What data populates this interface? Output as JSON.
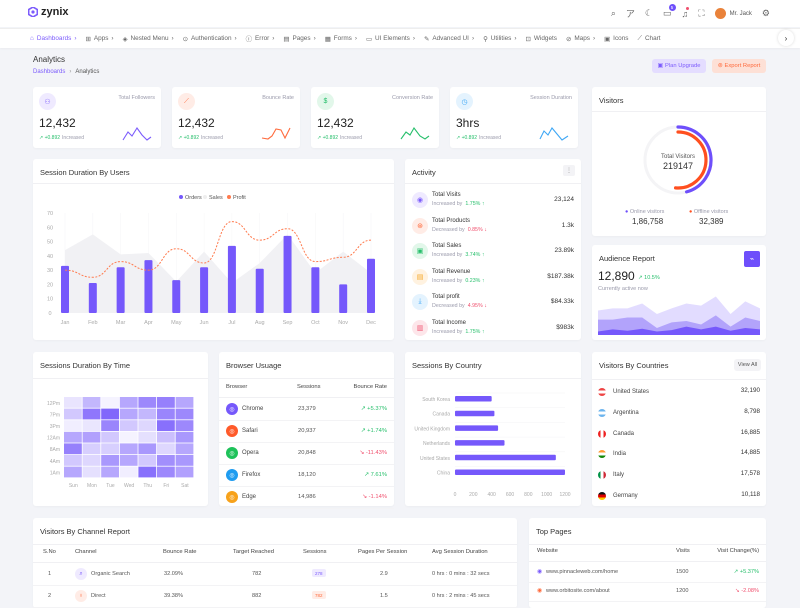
{
  "header": {
    "logo": "zynix",
    "user_name": "Mr. Jack",
    "notification_count": "5"
  },
  "nav": [
    "Dashboards",
    "Apps",
    "Nested Menu",
    "Authentication",
    "Error",
    "Pages",
    "Forms",
    "UI Elements",
    "Advanced UI",
    "Utilities",
    "Widgets",
    "Maps",
    "Icons",
    "Chart"
  ],
  "page": {
    "title": "Analytics",
    "breadcrumb": [
      "Dashboards",
      "Analytics"
    ],
    "plan_upgrade": "Plan Upgrade",
    "export_report": "Export Report"
  },
  "stats": [
    {
      "label": "Total Followers",
      "value": "12,432",
      "change": "+0.892",
      "change_text": "Increased",
      "color": "#7c5cfc",
      "bg": "#efeaff",
      "icon": "users-icon"
    },
    {
      "label": "Bounce Rate",
      "value": "12,432",
      "change": "+0.892",
      "change_text": "Increased",
      "color": "#ff6b3d",
      "bg": "#ffece6",
      "icon": "chart-line-icon"
    },
    {
      "label": "Conversion Rate",
      "value": "12,432",
      "change": "+0.892",
      "change_text": "Increased",
      "color": "#26bf6b",
      "bg": "#e2f7ea",
      "icon": "dollar-icon"
    },
    {
      "label": "Session Duration",
      "value": "3hrs",
      "change": "+0.892",
      "change_text": "Increased",
      "color": "#3ea7f5",
      "bg": "#e4f3fe",
      "icon": "clock-icon"
    }
  ],
  "visitors": {
    "title": "Visitors",
    "center_label": "Total Visitors",
    "center_value": "219147",
    "online_label": "Online visitors",
    "online_value": "1,86,758",
    "offline_label": "Offline visitors",
    "offline_value": "32,389",
    "online_color": "#6e4ffb",
    "offline_color": "#ff4f1f"
  },
  "session_chart": {
    "title": "Session Duration By Users",
    "type": "bar",
    "categories": [
      "Jan",
      "Feb",
      "Mar",
      "Apr",
      "May",
      "Jun",
      "Jul",
      "Aug",
      "Sep",
      "Oct",
      "Nov",
      "Dec"
    ],
    "ylim": [
      0,
      70
    ],
    "yticks": [
      0,
      10,
      20,
      30,
      40,
      50,
      60,
      70
    ],
    "legend": "top",
    "series": [
      {
        "name": "Orders",
        "type": "bar",
        "color": "#7558fb",
        "values": [
          33,
          21,
          32,
          37,
          23,
          32,
          47,
          31,
          54,
          32,
          20,
          38
        ]
      },
      {
        "name": "Sales",
        "type": "area",
        "color": "#f1f1f4",
        "values": [
          44,
          55,
          41,
          42,
          22,
          43,
          21,
          35,
          55,
          28,
          43,
          28
        ]
      },
      {
        "name": "Profit",
        "type": "line",
        "color": "#ff7a4d",
        "values": [
          30,
          25,
          36,
          30,
          45,
          35,
          64,
          51,
          59,
          36,
          39,
          51
        ]
      }
    ]
  },
  "activity": {
    "title": "Activity",
    "items": [
      {
        "title": "Total Visits",
        "sub": "Increased by",
        "pct": "1.75%",
        "dir": "up",
        "value": "23,124",
        "color": "#7c5cfc",
        "bg": "#efeaff",
        "icon": "visits-icon"
      },
      {
        "title": "Total Products",
        "sub": "Decreased by",
        "pct": "0.85%",
        "dir": "down",
        "value": "1.3k",
        "color": "#ff6b3d",
        "bg": "#ffece6",
        "icon": "products-icon"
      },
      {
        "title": "Total Sales",
        "sub": "Increased by",
        "pct": "3.74%",
        "dir": "up",
        "value": "23.89k",
        "color": "#26bf6b",
        "bg": "#e2f7ea",
        "icon": "wallet-icon"
      },
      {
        "title": "Total Revenue",
        "sub": "Increased by",
        "pct": "0.23%",
        "dir": "up",
        "value": "$187.38k",
        "color": "#f5a623",
        "bg": "#fff2e0",
        "icon": "receipt-icon"
      },
      {
        "title": "Total profit",
        "sub": "Decreased by",
        "pct": "4.95%",
        "dir": "down",
        "value": "$84.33k",
        "color": "#3ea7f5",
        "bg": "#e4f3fe",
        "icon": "download-icon"
      },
      {
        "title": "Total Income",
        "sub": "Increased by",
        "pct": "1.75%",
        "dir": "up",
        "value": "$983k",
        "color": "#f0506e",
        "bg": "#fde6ea",
        "icon": "money-icon"
      }
    ]
  },
  "audience": {
    "title": "Audience Report",
    "value": "12,890",
    "change": "10.5%",
    "sub": "Currently active now",
    "series": [
      [
        35,
        38,
        38,
        45,
        30,
        38,
        45,
        42,
        55,
        30,
        48,
        38
      ],
      [
        22,
        22,
        25,
        25,
        10,
        18,
        20,
        15,
        28,
        12,
        25,
        20
      ],
      [
        5,
        8,
        6,
        9,
        5,
        7,
        12,
        8,
        12,
        6,
        10,
        8
      ]
    ]
  },
  "heatmap": {
    "title": "Sessions Duration By Time",
    "rows": [
      "12Pm",
      "7Pm",
      "3Pm",
      "12Am",
      "8Am",
      "4Am",
      "1Am"
    ],
    "cols": [
      "Sun",
      "Mon",
      "Tue",
      "Wed",
      "Thu",
      "Fri",
      "Sat"
    ],
    "values": [
      [
        0.12,
        0.4,
        0.02,
        0.5,
        0.7,
        0.75,
        0.5
      ],
      [
        0.3,
        0.8,
        0.9,
        0.5,
        0.4,
        0.72,
        0.7
      ],
      [
        0.05,
        0.1,
        0.72,
        0.3,
        0.2,
        0.85,
        0.7
      ],
      [
        0.5,
        0.55,
        0.3,
        0.02,
        0.15,
        0.35,
        0.6
      ],
      [
        0.75,
        0.25,
        0.25,
        0.5,
        0.6,
        0.2,
        0.5
      ],
      [
        0.3,
        0.2,
        0.6,
        0.5,
        0.3,
        0.65,
        0.6
      ],
      [
        0.5,
        0.15,
        0.5,
        0.05,
        0.85,
        0.7,
        0.55
      ]
    ]
  },
  "browser": {
    "title": "Browser Usuage",
    "headers": [
      "Browser",
      "Sessions",
      "Bounce Rate"
    ],
    "rows": [
      {
        "name": "Chrome",
        "sessions": "23,379",
        "rate": "+5.37%",
        "dir": "up",
        "color": "#7558fb"
      },
      {
        "name": "Safari",
        "sessions": "20,937",
        "rate": "+1.74%",
        "dir": "up",
        "color": "#ff5a2a"
      },
      {
        "name": "Opera",
        "sessions": "20,848",
        "rate": "-11.43%",
        "dir": "down",
        "color": "#1ec25a"
      },
      {
        "name": "Firefox",
        "sessions": "18,120",
        "rate": "7.61%",
        "dir": "up",
        "color": "#1f9cf0"
      },
      {
        "name": "Edge",
        "sessions": "14,986",
        "rate": "-1.14%",
        "dir": "down",
        "color": "#f7a21b"
      }
    ]
  },
  "country_chart": {
    "title": "Sessions By Country",
    "type": "bar",
    "orientation": "horizontal",
    "categories": [
      "South Korea",
      "Canada",
      "United Kingdom",
      "Netherlands",
      "United States",
      "China"
    ],
    "values": [
      400,
      430,
      470,
      540,
      1100,
      1200
    ],
    "xlim": [
      0,
      1200
    ],
    "xticks": [
      0,
      200,
      400,
      600,
      800,
      1000,
      1200
    ],
    "color": "#7558fb"
  },
  "countries": {
    "title": "Visitors By Countries",
    "view_all": "View All",
    "rows": [
      {
        "name": "United States",
        "value": "32,190",
        "flag": "us-flag-icon"
      },
      {
        "name": "Argentina",
        "value": "8,798",
        "flag": "argentina-flag-icon"
      },
      {
        "name": "Canada",
        "value": "16,885",
        "flag": "canada-flag-icon"
      },
      {
        "name": "India",
        "value": "14,885",
        "flag": "india-flag-icon"
      },
      {
        "name": "Italy",
        "value": "17,578",
        "flag": "italy-flag-icon"
      },
      {
        "name": "Germany",
        "value": "10,118",
        "flag": "germany-flag-icon"
      }
    ]
  },
  "channel": {
    "title": "Visitors By Channel Report",
    "headers": [
      "S.No",
      "Channel",
      "Bounce Rate",
      "Target Reached",
      "Sessions",
      "Pages Per Session",
      "Avg Session Duration"
    ],
    "rows": [
      {
        "no": "1",
        "channel": "Organic Search",
        "bounce": "32.09%",
        "target": "782",
        "sessions": "278",
        "pages": "2.9",
        "avg": "0 hrs : 0 mins : 32 secs",
        "color": "#7c5cfc",
        "bg": "#efeaff"
      },
      {
        "no": "2",
        "channel": "Direct",
        "bounce": "39.38%",
        "target": "882",
        "sessions": "782",
        "pages": "1.5",
        "avg": "0 hrs : 2 mins : 45 secs",
        "color": "#ff6b3d",
        "bg": "#ffece6"
      }
    ]
  },
  "top_pages": {
    "title": "Top Pages",
    "headers": [
      "Website",
      "Visits",
      "Visit Change(%)"
    ],
    "rows": [
      {
        "site": "www.pinnacleweb.com/home",
        "visits": "1500",
        "change": "+5.37%",
        "dir": "up",
        "color": "#7c5cfc"
      },
      {
        "site": "www.orbitosite.com/about",
        "visits": "1200",
        "change": "-2.08%",
        "dir": "down",
        "color": "#ff6b3d"
      }
    ]
  }
}
